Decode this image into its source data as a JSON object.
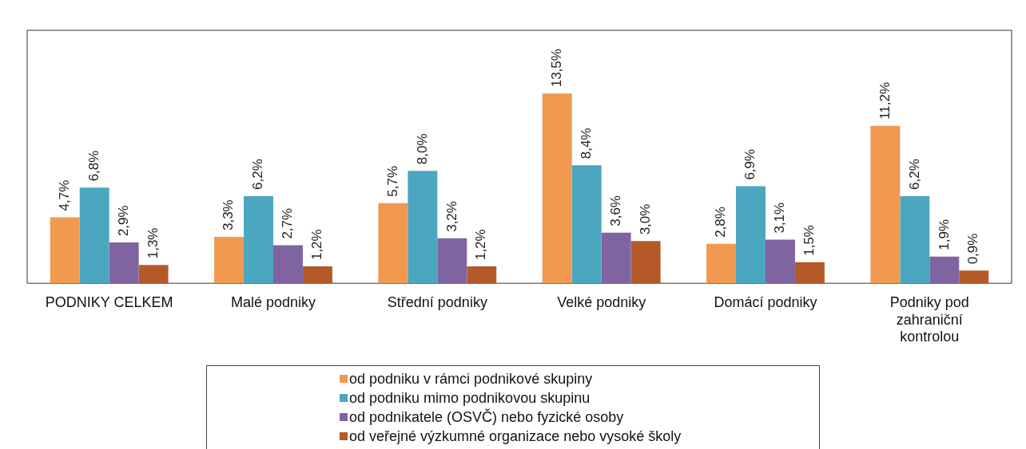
{
  "chart_data": {
    "type": "bar",
    "categories": [
      "PODNIKY CELKEM",
      "Malé podniky",
      "Střední podniky",
      "Velké podniky",
      "Domácí podniky",
      "Podniky pod zahraniční kontrolou"
    ],
    "series": [
      {
        "name": "od podniku v rámci podnikové skupiny",
        "color": "#f0994f",
        "values": [
          4.7,
          3.3,
          5.7,
          13.5,
          2.8,
          11.2
        ],
        "value_labels": [
          "4,7%",
          "3,3%",
          "5,7%",
          "13,5%",
          "2,8%",
          "11,2%"
        ]
      },
      {
        "name": "od podniku mimo podnikovou skupinu",
        "color": "#4ba6c0",
        "values": [
          6.8,
          6.2,
          8.0,
          8.4,
          6.9,
          6.2
        ],
        "value_labels": [
          "6,8%",
          "6,2%",
          "8,0%",
          "8,4%",
          "6,9%",
          "6,2%"
        ]
      },
      {
        "name": "od podnikatele (OSVČ) nebo fyzické osoby",
        "color": "#8064a2",
        "values": [
          2.9,
          2.7,
          3.2,
          3.6,
          3.1,
          1.9
        ],
        "value_labels": [
          "2,9%",
          "2,7%",
          "3,2%",
          "3,6%",
          "3,1%",
          "1,9%"
        ]
      },
      {
        "name": "od veřejné výzkumné organizace nebo vysoké školy",
        "color": "#b45a28",
        "values": [
          1.3,
          1.2,
          1.2,
          3.0,
          1.5,
          0.9
        ],
        "value_labels": [
          "1,3%",
          "1,2%",
          "1,2%",
          "3,0%",
          "1,5%",
          "0,9%"
        ]
      }
    ],
    "ylim": [
      0,
      18
    ],
    "tick_labels": "x",
    "grid": false,
    "legend": "bottom"
  }
}
